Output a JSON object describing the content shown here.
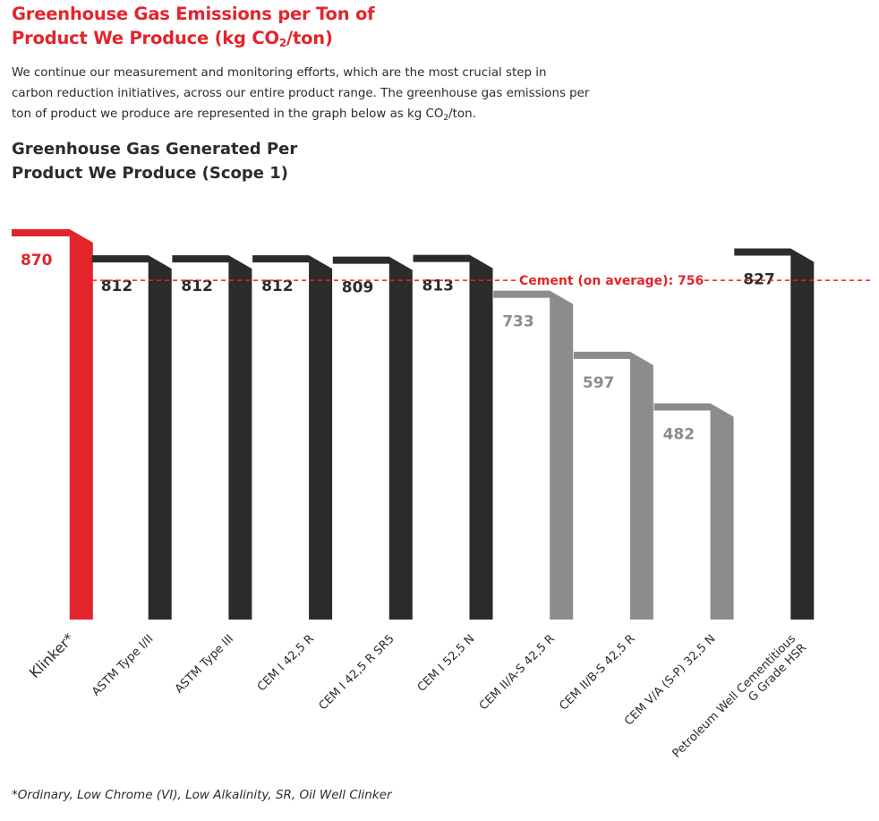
{
  "header": {
    "title_line1": "Greenhouse Gas Emissions per Ton of",
    "title_line2_pre": "Product We Produce (kg CO",
    "title_line2_sub": "2",
    "title_line2_post": "/ton)",
    "intro_line1": "We continue our measurement and monitoring efforts, which are the most crucial step in",
    "intro_line2": "carbon reduction initiatives, across our entire product range. The greenhouse gas emissions per",
    "intro_line3_pre": "ton of product we produce are represented in the graph below as kg CO",
    "intro_line3_sub": "2",
    "intro_line3_post": "/ton.",
    "subtitle_line1": "Greenhouse Gas Generated Per",
    "subtitle_line2": "Product We Produce (Scope 1)"
  },
  "chart_data": {
    "type": "bar",
    "categories": [
      "Klinker*",
      "ASTM Type I/II",
      "ASTM Type III",
      "CEM I 42,5 R",
      "CEM I 42,5 R SR5",
      "CEM I 52,5 N",
      "CEM II/A-S 42,5 R",
      "CEM II/B-S 42,5 R",
      "CEM V/A (S-P) 32,5 N",
      [
        "Petroleum Well Cementitious",
        "G Grade HSR"
      ]
    ],
    "values": [
      870,
      812,
      812,
      812,
      809,
      813,
      733,
      597,
      482,
      827
    ],
    "value_labels": [
      "870",
      "812",
      "812",
      "812",
      "809",
      "813",
      "733",
      "597",
      "482",
      "827"
    ],
    "bar_colors": [
      "#e3242b",
      "#2b2b2b",
      "#2b2b2b",
      "#2b2b2b",
      "#2b2b2b",
      "#2b2b2b",
      "#8c8c8c",
      "#8c8c8c",
      "#8c8c8c",
      "#2b2b2b"
    ],
    "reference_line": {
      "value": 756,
      "label": "Cement (on average): 756",
      "color": "#e3242b"
    },
    "ylim": [
      0,
      870
    ],
    "xlabel": "",
    "ylabel": ""
  },
  "footnote": "*Ordinary, Low Chrome (VI), Low Alkalinity, SR, Oil Well Clinker"
}
